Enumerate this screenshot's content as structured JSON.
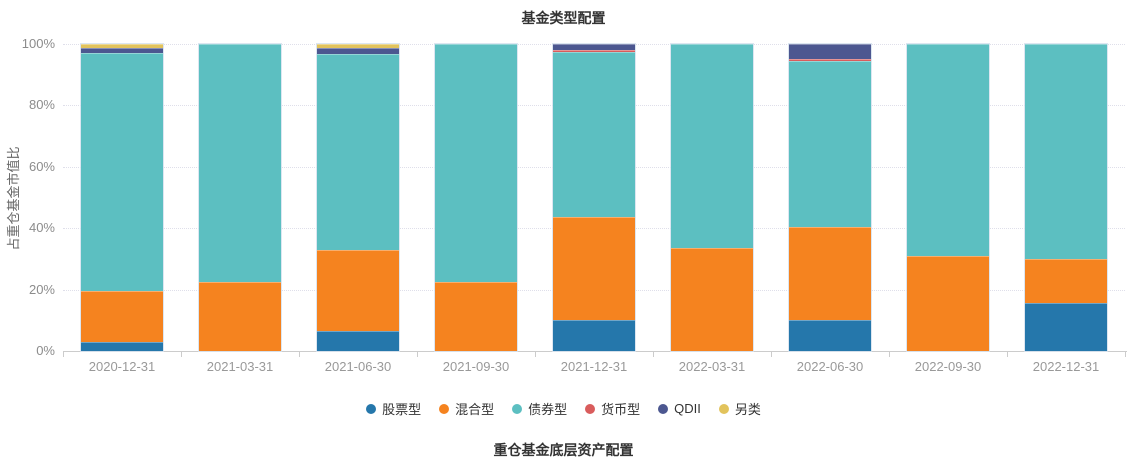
{
  "chart_data": {
    "type": "bar",
    "stacked": true,
    "title": "基金类型配置",
    "footer_title": "重仓基金底层资产配置",
    "ylabel": "占重仓基金市值比",
    "xlabel": "",
    "ylim": [
      0,
      100
    ],
    "y_ticks": [
      "0%",
      "20%",
      "40%",
      "60%",
      "80%",
      "100%"
    ],
    "grid": true,
    "legend_position": "bottom",
    "categories": [
      "2020-12-31",
      "2021-03-31",
      "2021-06-30",
      "2021-09-30",
      "2021-12-31",
      "2022-03-31",
      "2022-06-30",
      "2022-09-30",
      "2022-12-31"
    ],
    "series": [
      {
        "name": "股票型",
        "color": "#2577ab",
        "values": [
          3,
          0,
          6.5,
          0,
          10,
          0,
          10,
          0,
          15.5
        ]
      },
      {
        "name": "混合型",
        "color": "#f5831f",
        "values": [
          16.5,
          22.5,
          26.5,
          22.5,
          33.5,
          33.5,
          30.5,
          31,
          14.5
        ]
      },
      {
        "name": "债券型",
        "color": "#5cbfc1",
        "values": [
          77.5,
          77.5,
          63.8,
          77.5,
          54,
          66.5,
          54,
          69,
          70
        ]
      },
      {
        "name": "货币型",
        "color": "#d95c5c",
        "values": [
          0,
          0,
          0,
          0,
          0.5,
          0,
          0.7,
          0,
          0
        ]
      },
      {
        "name": "QDII",
        "color": "#4c5790",
        "values": [
          1.8,
          0,
          2,
          0,
          2,
          0,
          4.8,
          0,
          0
        ]
      },
      {
        "name": "另类",
        "color": "#e2c35c",
        "values": [
          1.2,
          0,
          1.2,
          0,
          0,
          0,
          0,
          0,
          0
        ]
      }
    ]
  }
}
